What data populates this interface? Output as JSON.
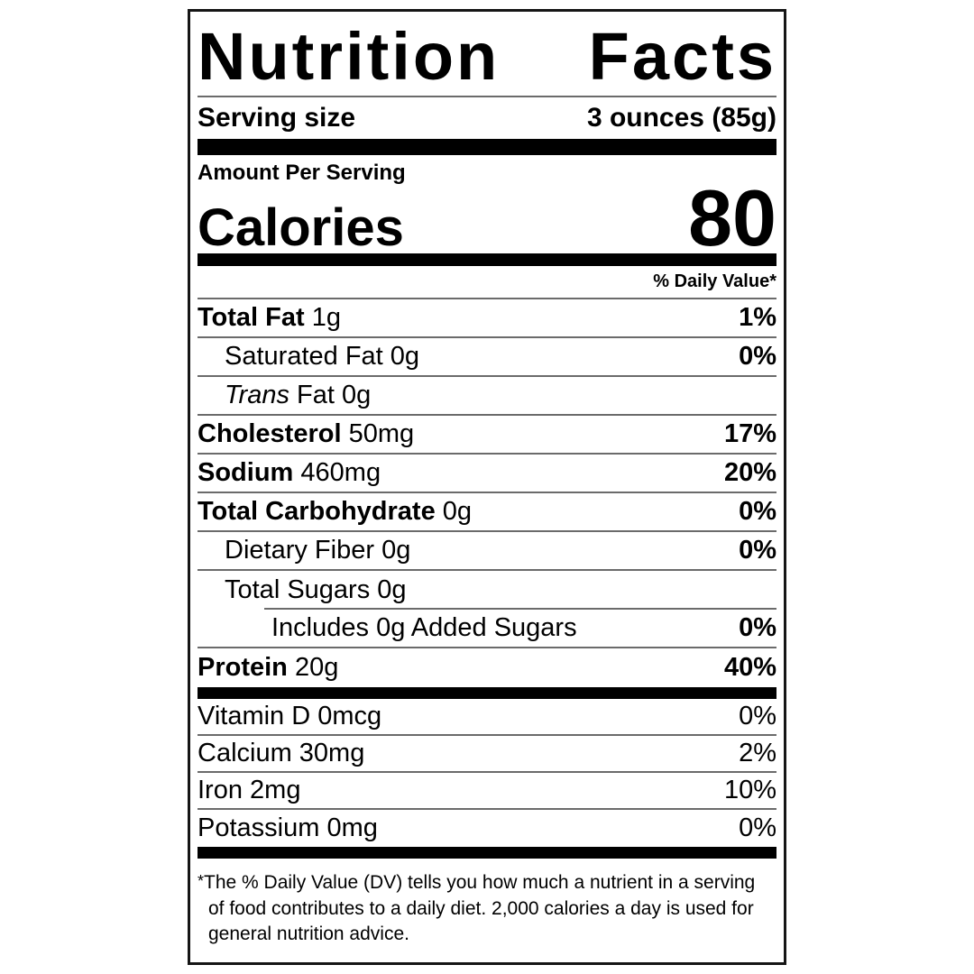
{
  "label": {
    "title": "Nutrition Facts",
    "serving": {
      "label": "Serving size",
      "value": "3 ounces (85g)"
    },
    "amount_per_serving": "Amount Per Serving",
    "calories": {
      "label": "Calories",
      "value": "80"
    },
    "daily_value_header": "% Daily Value*",
    "rows": {
      "total_fat": {
        "name": "Total Fat",
        "amount": "1g",
        "percent": "1%"
      },
      "saturated_fat": {
        "name": "Saturated Fat",
        "amount": "0g",
        "percent": "0%"
      },
      "trans_fat": {
        "name_italic": "Trans",
        "name_rest": "Fat",
        "amount": "0g",
        "percent": ""
      },
      "cholesterol": {
        "name": "Cholesterol",
        "amount": "50mg",
        "percent": "17%"
      },
      "sodium": {
        "name": "Sodium",
        "amount": "460mg",
        "percent": "20%"
      },
      "total_carbohydrate": {
        "name": "Total Carbohydrate",
        "amount": "0g",
        "percent": "0%"
      },
      "dietary_fiber": {
        "name": "Dietary Fiber",
        "amount": "0g",
        "percent": "0%"
      },
      "total_sugars": {
        "name": "Total Sugars",
        "amount": "0g",
        "percent": ""
      },
      "added_sugars": {
        "name": "Includes 0g Added Sugars",
        "percent": "0%"
      },
      "protein": {
        "name": "Protein",
        "amount": "20g",
        "percent": "40%"
      }
    },
    "vitamins": {
      "vitamin_d": {
        "name": "Vitamin D 0mcg",
        "percent": "0%"
      },
      "calcium": {
        "name": "Calcium 30mg",
        "percent": "2%"
      },
      "iron": {
        "name": "Iron 2mg",
        "percent": "10%"
      },
      "potassium": {
        "name": "Potassium 0mg",
        "percent": "0%"
      }
    },
    "footnote": {
      "asterisk": "*",
      "text": "The % Daily Value (DV) tells you how much a nutrient in a serving of food contributes to a daily diet. 2,000 calories a day is used for general nutrition advice."
    },
    "colors": {
      "text": "#000000",
      "background": "#ffffff",
      "hairline": "#6b6b6b",
      "bar": "#000000"
    }
  }
}
